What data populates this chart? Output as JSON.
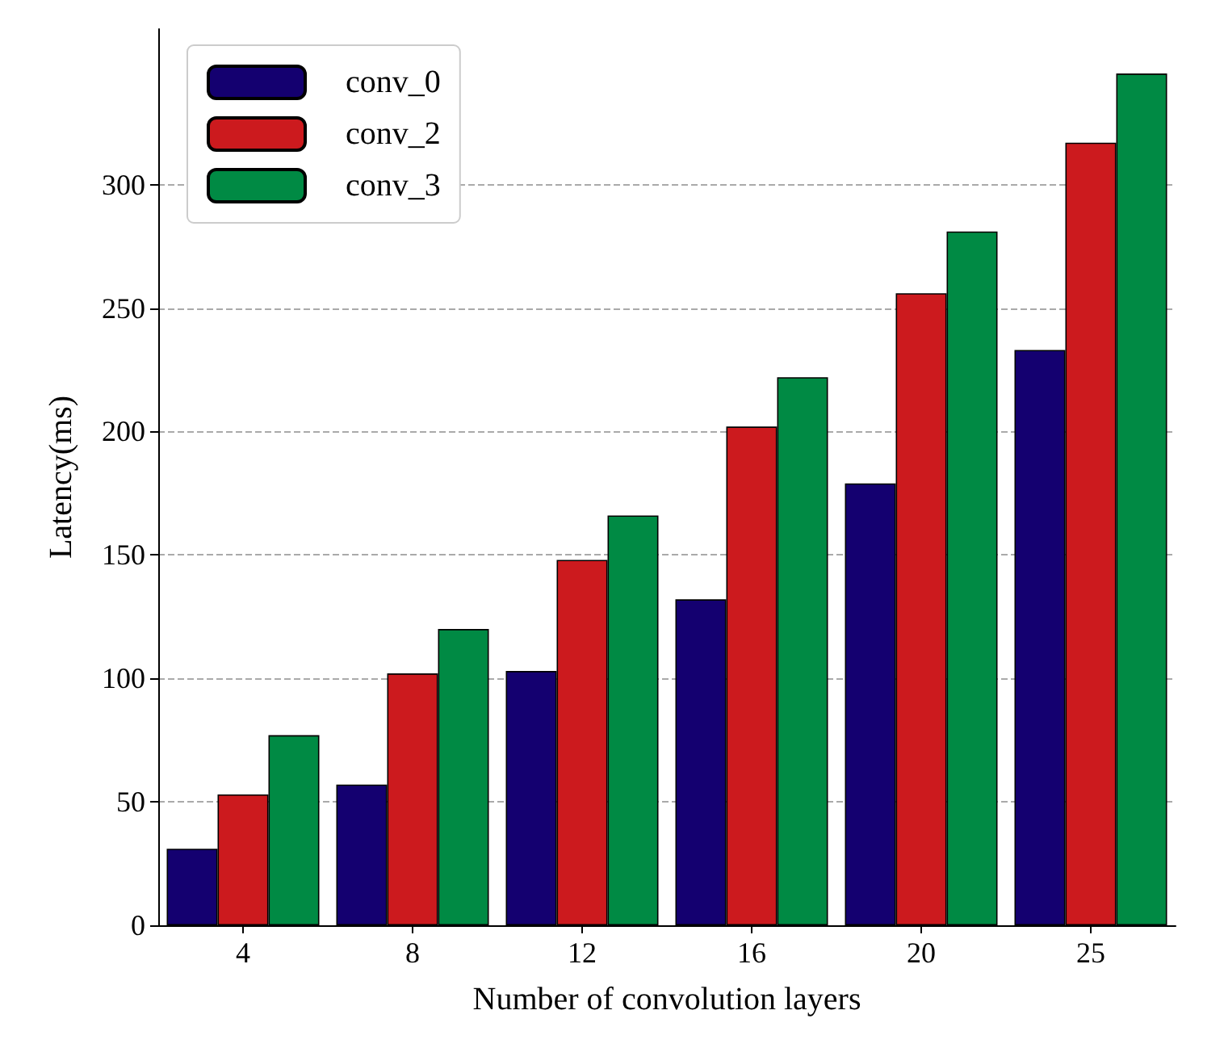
{
  "chart_data": {
    "type": "bar",
    "xlabel": "Number of convolution layers",
    "ylabel": "Latency(ms)",
    "categories": [
      "4",
      "8",
      "12",
      "16",
      "20",
      "25"
    ],
    "series": [
      {
        "name": "conv_0",
        "color": "#140070",
        "values": [
          31,
          57,
          103,
          132,
          179,
          233
        ]
      },
      {
        "name": "conv_2",
        "color": "#cc1a1e",
        "values": [
          53,
          102,
          148,
          202,
          256,
          317
        ]
      },
      {
        "name": "conv_3",
        "color": "#008a44",
        "values": [
          77,
          120,
          166,
          222,
          281,
          345
        ]
      }
    ],
    "ylim": [
      0,
      363
    ],
    "yticks": [
      0,
      50,
      100,
      150,
      200,
      250,
      300
    ],
    "grid": "y",
    "legend": "top left"
  }
}
